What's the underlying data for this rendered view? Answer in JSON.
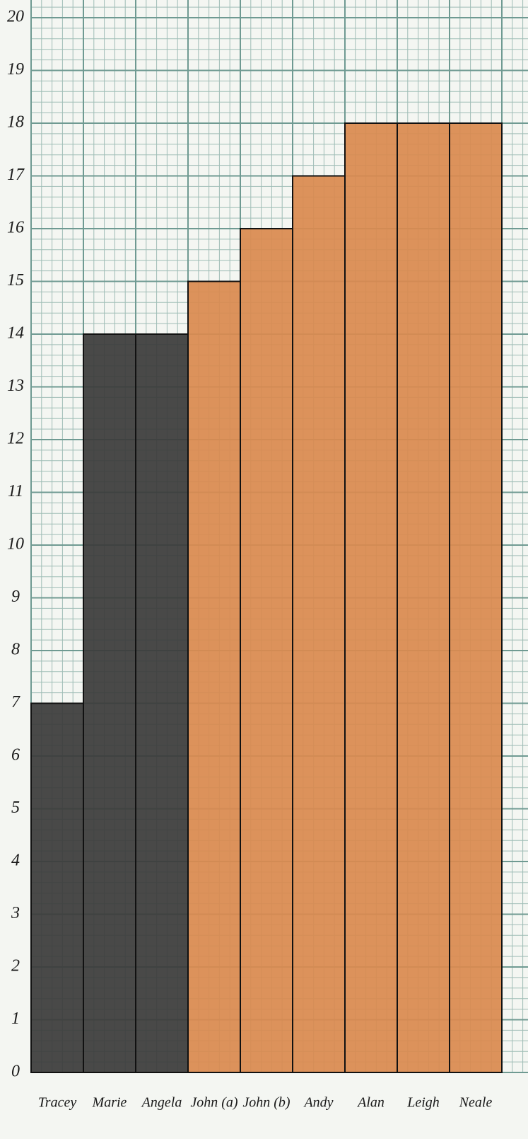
{
  "chart_data": {
    "type": "bar",
    "categories": [
      "Tracey",
      "Marie",
      "Angela",
      "John (a)",
      "John (b)",
      "Andy",
      "Alan",
      "Leigh",
      "Neale"
    ],
    "values": [
      7,
      14,
      14,
      15,
      16,
      17,
      18,
      18,
      18
    ],
    "colors": [
      "#3b3b3b",
      "#3b3b3b",
      "#3b3b3b",
      "#d98a50",
      "#d98a50",
      "#d98a50",
      "#d98a50",
      "#d98a50",
      "#d98a50"
    ],
    "ylim": [
      0,
      20
    ],
    "yticks": [
      0,
      1,
      2,
      3,
      4,
      5,
      6,
      7,
      8,
      9,
      10,
      11,
      12,
      13,
      14,
      15,
      16,
      17,
      18,
      19,
      20
    ],
    "grid": true
  }
}
